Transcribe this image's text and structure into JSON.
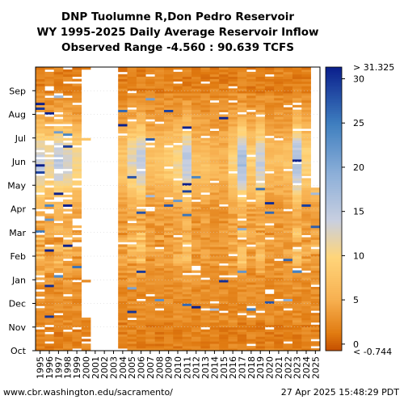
{
  "chart_data": {
    "type": "heatmap",
    "title_lines": [
      "DNP Tuolumne R,Don Pedro Reservoir",
      "WY 1995-2025 Daily Average Reservoir Inflow",
      "Observed Range -4.560 : 90.639 TCFS"
    ],
    "xlabel": "",
    "ylabel": "",
    "x_categories": [
      "1995",
      "1996",
      "1997",
      "1998",
      "1999",
      "2000",
      "2001",
      "2002",
      "2003",
      "2004",
      "2005",
      "2006",
      "2007",
      "2008",
      "2009",
      "2010",
      "2011",
      "2012",
      "2013",
      "2014",
      "2015",
      "2016",
      "2017",
      "2018",
      "2019",
      "2020",
      "2021",
      "2022",
      "2023",
      "2024",
      "2025"
    ],
    "y_months": [
      "Oct",
      "Nov",
      "Dec",
      "Jan",
      "Feb",
      "Mar",
      "Apr",
      "May",
      "Jun",
      "Jul",
      "Aug",
      "Sep"
    ],
    "colorbar": {
      "min": -0.744,
      "max": 31.325,
      "ticks": [
        0,
        5,
        10,
        15,
        20,
        25,
        30
      ],
      "top_label": "> 31.325",
      "bottom_label": "< -0.744",
      "colors": [
        "#c44e00",
        "#e07a10",
        "#f7b050",
        "#ffd57a",
        "#c8cfe0",
        "#8eb0d9",
        "#3f7fc0",
        "#0a1f8c"
      ]
    },
    "missing_years_full": [
      "2001",
      "2002",
      "2003"
    ],
    "partial_years": {
      "2000": "data mostly missing after Nov",
      "2025": "data through late Apr"
    },
    "notes": "Peak inflows in Jan-Jun of wet years 1997, 2006, 2011, 2017, 2019, 2023"
  },
  "footer": {
    "left": "www.cbr.washington.edu/sacramento/",
    "right": "27 Apr 2025 15:48:29 PDT"
  }
}
